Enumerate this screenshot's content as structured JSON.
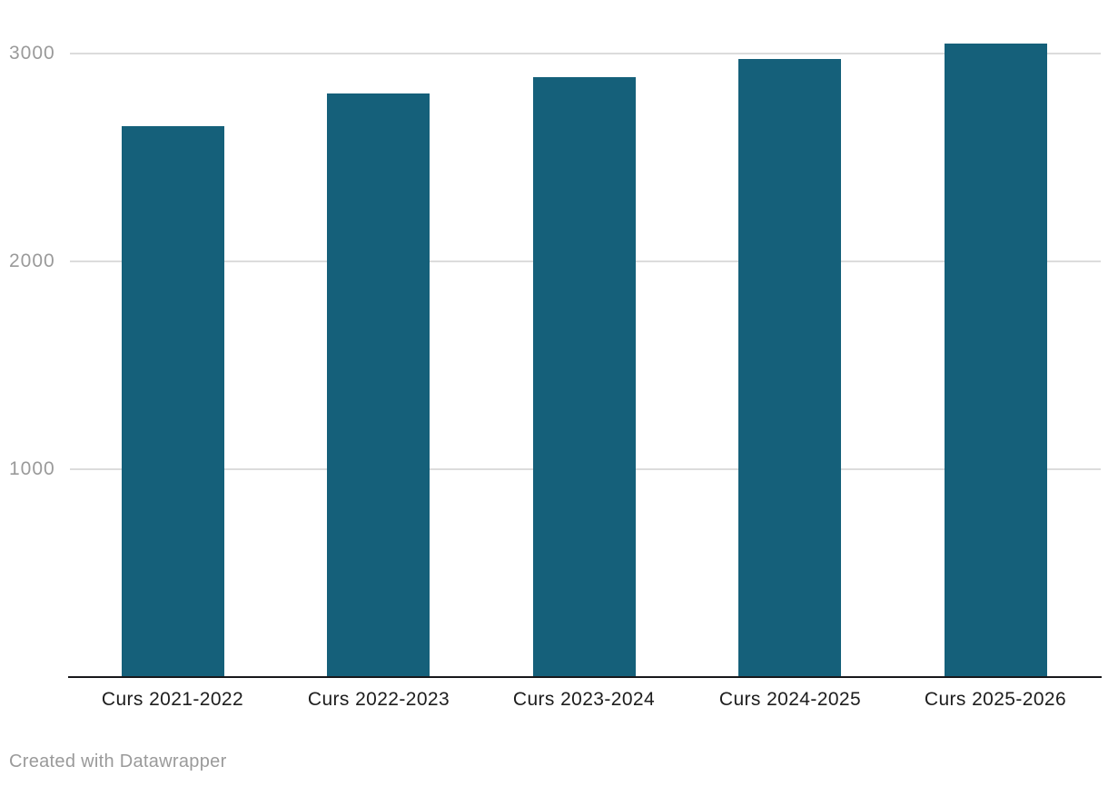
{
  "chart_data": {
    "type": "bar",
    "categories": [
      "Curs 2021-2022",
      "Curs 2022-2023",
      "Curs 2023-2024",
      "Curs 2024-2025",
      "Curs 2025-2026"
    ],
    "values": [
      2650,
      2810,
      2885,
      2975,
      3050
    ],
    "title": "",
    "xlabel": "",
    "ylabel": "",
    "ylim": [
      0,
      3200
    ],
    "yticks": [
      1000,
      2000,
      3000
    ],
    "grid": true,
    "legend": "none",
    "colors": {
      "bar": "#15607a",
      "gridline": "#dcdcdc",
      "axis_line": "#18181b",
      "y_tick_label": "#9a9a9a",
      "x_tick_label": "#1d1d1d"
    }
  },
  "footer": {
    "credit": "Created with Datawrapper",
    "credit_color": "#9a9a9a"
  }
}
